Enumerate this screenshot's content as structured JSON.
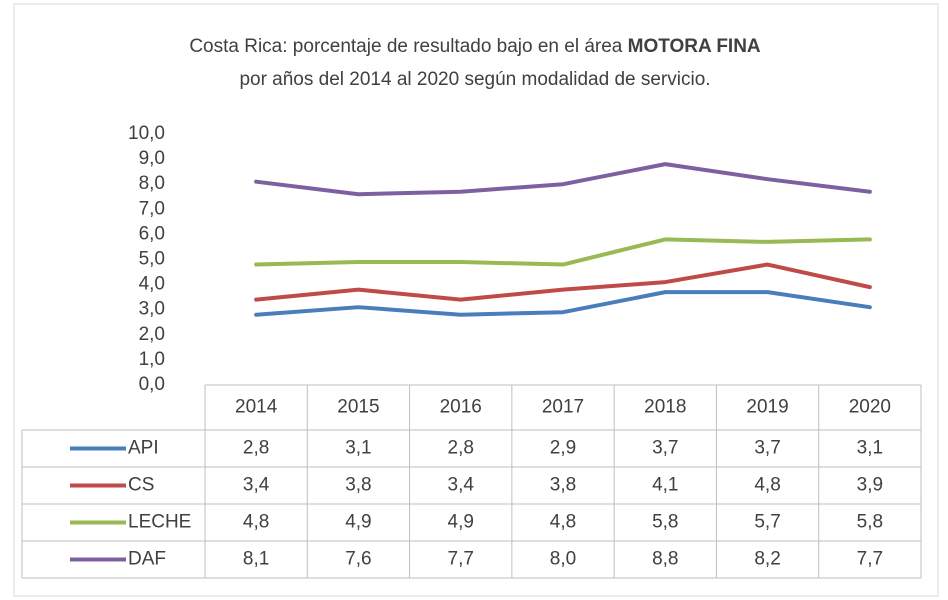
{
  "chart_data": {
    "type": "line",
    "title": [
      "Costa Rica: porcentaje de resultado bajo en el área ",
      "MOTORA FINA",
      "por años del 2014 al 2020 según modalidad de servicio."
    ],
    "categories": [
      "2014",
      "2015",
      "2016",
      "2017",
      "2018",
      "2019",
      "2020"
    ],
    "series": [
      {
        "name": "API",
        "color": "#4a7ebb",
        "values": [
          2.8,
          3.1,
          2.8,
          2.9,
          3.7,
          3.7,
          3.1
        ],
        "value_labels": [
          "2,8",
          "3,1",
          "2,8",
          "2,9",
          "3,7",
          "3,7",
          "3,1"
        ]
      },
      {
        "name": "CS",
        "color": "#be4b48",
        "values": [
          3.4,
          3.8,
          3.4,
          3.8,
          4.1,
          4.8,
          3.9
        ],
        "value_labels": [
          "3,4",
          "3,8",
          "3,4",
          "3,8",
          "4,1",
          "4,8",
          "3,9"
        ]
      },
      {
        "name": "LECHE",
        "color": "#98b954",
        "values": [
          4.8,
          4.9,
          4.9,
          4.8,
          5.8,
          5.7,
          5.8
        ],
        "value_labels": [
          "4,8",
          "4,9",
          "4,9",
          "4,8",
          "5,8",
          "5,7",
          "5,8"
        ]
      },
      {
        "name": "DAF",
        "color": "#7d60a0",
        "values": [
          8.1,
          7.6,
          7.7,
          8.0,
          8.8,
          8.2,
          7.7
        ],
        "value_labels": [
          "8,1",
          "7,6",
          "7,7",
          "8,0",
          "8,8",
          "8,2",
          "7,7"
        ]
      }
    ],
    "ylim": [
      0,
      10
    ],
    "yticks": [
      {
        "value": 0,
        "label": "0,0"
      },
      {
        "value": 1,
        "label": "1,0"
      },
      {
        "value": 2,
        "label": "2,0"
      },
      {
        "value": 3,
        "label": "3,0"
      },
      {
        "value": 4,
        "label": "4,0"
      },
      {
        "value": 5,
        "label": "5,0"
      },
      {
        "value": 6,
        "label": "6,0"
      },
      {
        "value": 7,
        "label": "7,0"
      },
      {
        "value": 8,
        "label": "8,0"
      },
      {
        "value": 9,
        "label": "9,0"
      },
      {
        "value": 10,
        "label": "10,0"
      }
    ],
    "grid": false
  }
}
